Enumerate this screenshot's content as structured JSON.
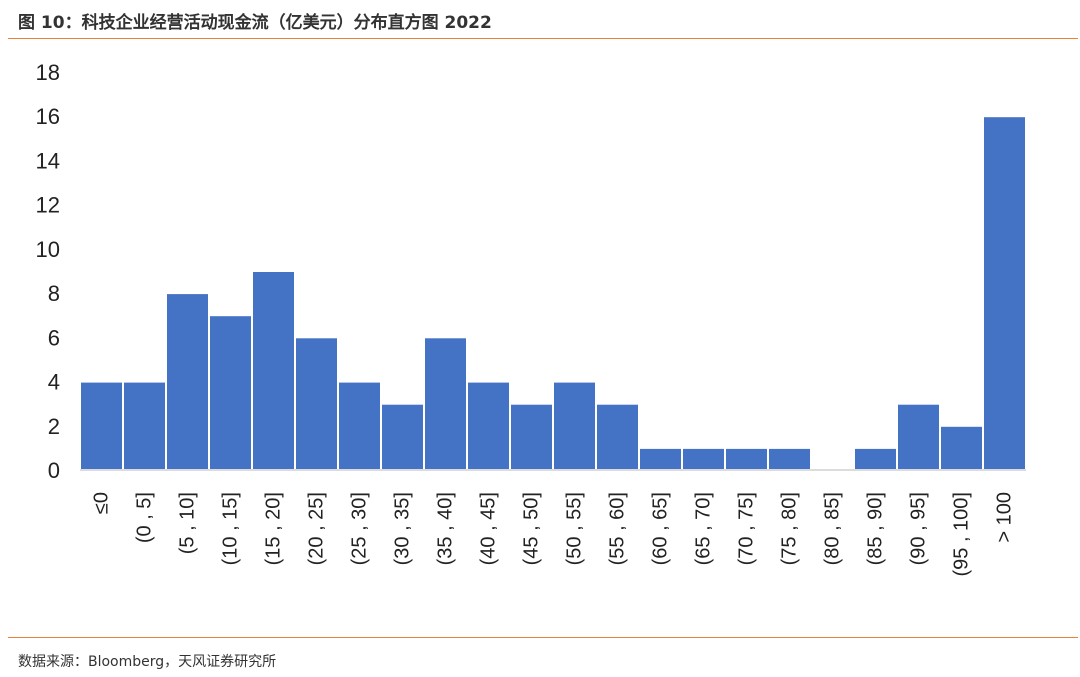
{
  "figure": {
    "title": "图 10：科技企业经营活动现金流（亿美元）分布直方图 2022",
    "source": "数据来源：Bloomberg，天风证券研究所"
  },
  "chart_data": {
    "type": "bar",
    "categories": [
      "≤0",
      "(0 , 5]",
      "(5 , 10]",
      "(10 , 15]",
      "(15 , 20]",
      "(20 , 25]",
      "(25 , 30]",
      "(30 , 35]",
      "(35 , 40]",
      "(40 , 45]",
      "(45 , 50]",
      "(50 , 55]",
      "(55 , 60]",
      "(60 , 65]",
      "(65 , 70]",
      "(70 , 75]",
      "(75 , 80]",
      "(80 , 85]",
      "(85 , 90]",
      "(90 , 95]",
      "(95 , 100]",
      "> 100"
    ],
    "values": [
      4,
      4,
      8,
      7,
      9,
      6,
      4,
      3,
      6,
      4,
      3,
      4,
      3,
      1,
      1,
      1,
      1,
      0,
      1,
      3,
      2,
      16
    ],
    "ylim": [
      0,
      18
    ],
    "yticks": [
      0,
      2,
      4,
      6,
      8,
      10,
      12,
      14,
      16,
      18
    ],
    "grid": false,
    "bar_color": "#4472c4",
    "bar_edge_color": "#ffffff"
  }
}
